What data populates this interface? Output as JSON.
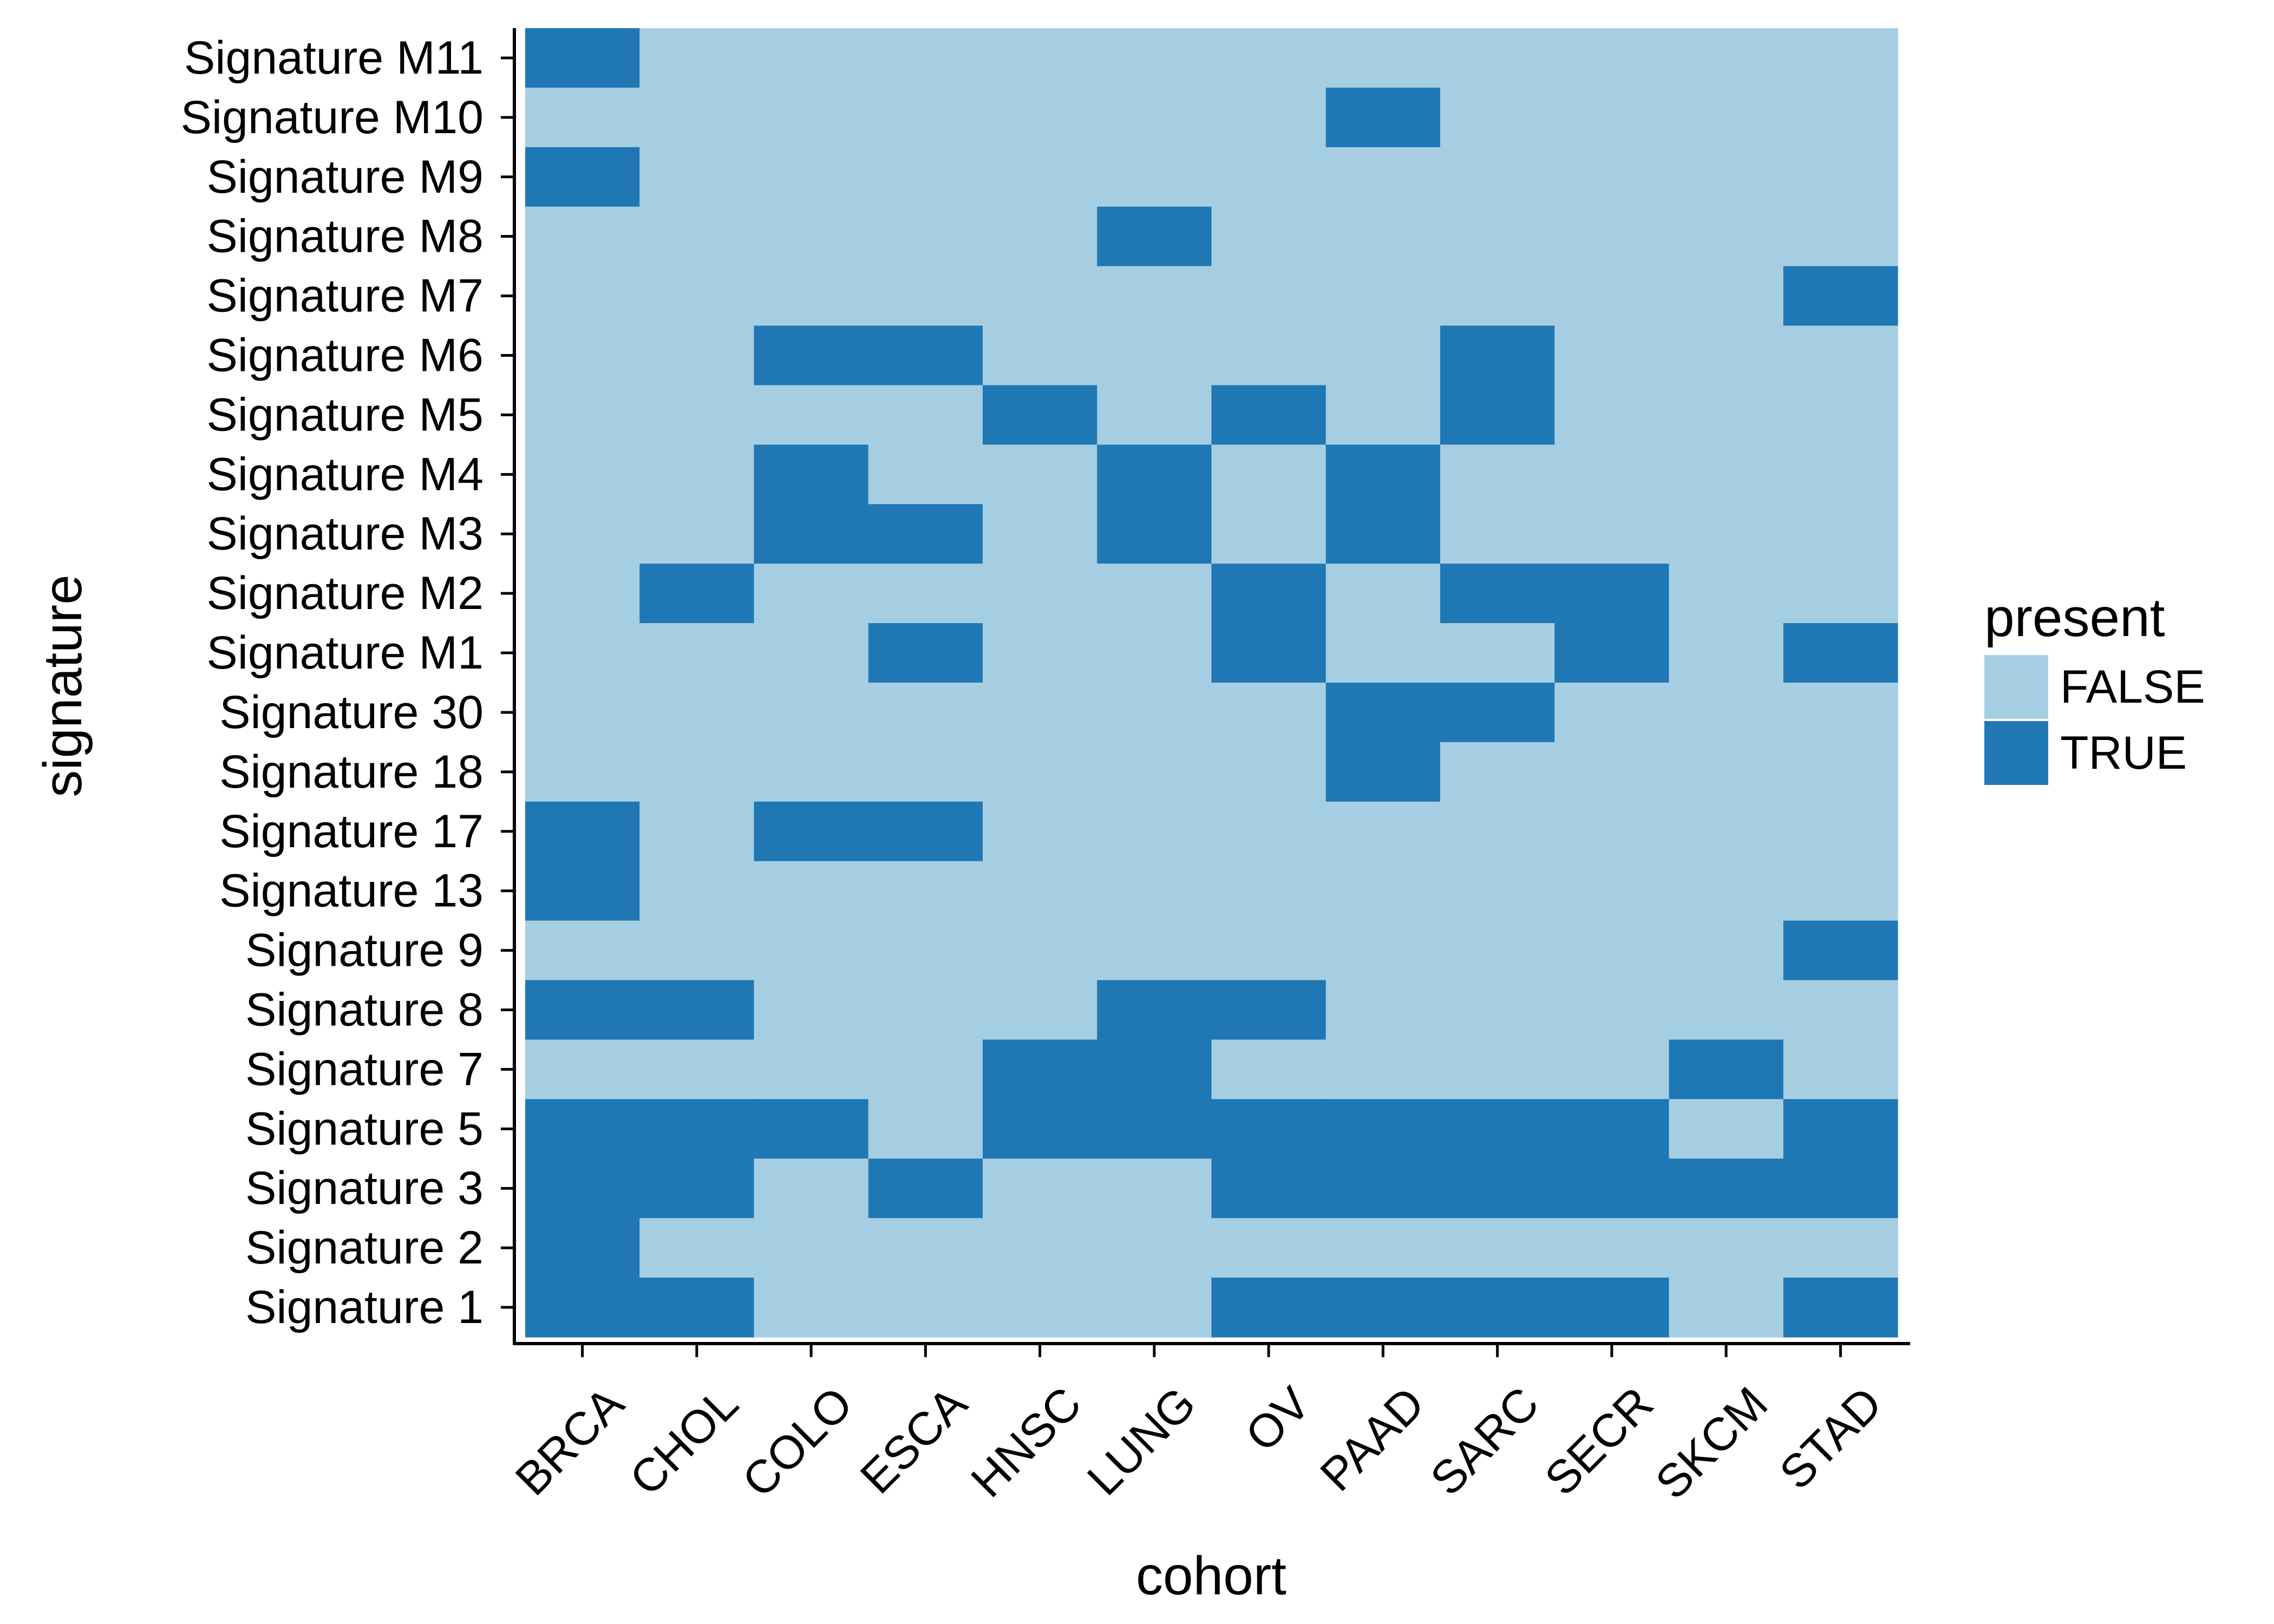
{
  "chart_data": {
    "type": "heatmap",
    "title": "",
    "xlabel": "cohort",
    "ylabel": "signature",
    "x_categories": [
      "BRCA",
      "CHOL",
      "COLO",
      "ESCA",
      "HNSC",
      "LUNG",
      "OV",
      "PAAD",
      "SARC",
      "SECR",
      "SKCM",
      "STAD"
    ],
    "y_categories_top_to_bottom": [
      "Signature M11",
      "Signature M10",
      "Signature M9",
      "Signature M8",
      "Signature M7",
      "Signature M6",
      "Signature M5",
      "Signature M4",
      "Signature M3",
      "Signature M2",
      "Signature M1",
      "Signature 30",
      "Signature 18",
      "Signature 17",
      "Signature 13",
      "Signature 9",
      "Signature 8",
      "Signature 7",
      "Signature 5",
      "Signature 3",
      "Signature 2",
      "Signature 1"
    ],
    "present_matrix": [
      [
        1,
        0,
        0,
        0,
        0,
        0,
        0,
        0,
        0,
        0,
        0,
        0
      ],
      [
        0,
        0,
        0,
        0,
        0,
        0,
        0,
        1,
        0,
        0,
        0,
        0
      ],
      [
        1,
        0,
        0,
        0,
        0,
        0,
        0,
        0,
        0,
        0,
        0,
        0
      ],
      [
        0,
        0,
        0,
        0,
        0,
        1,
        0,
        0,
        0,
        0,
        0,
        0
      ],
      [
        0,
        0,
        0,
        0,
        0,
        0,
        0,
        0,
        0,
        0,
        0,
        1
      ],
      [
        0,
        0,
        1,
        1,
        0,
        0,
        0,
        0,
        1,
        0,
        0,
        0
      ],
      [
        0,
        0,
        0,
        0,
        1,
        0,
        1,
        0,
        1,
        0,
        0,
        0
      ],
      [
        0,
        0,
        1,
        0,
        0,
        1,
        0,
        1,
        0,
        0,
        0,
        0
      ],
      [
        0,
        0,
        1,
        1,
        0,
        1,
        0,
        1,
        0,
        0,
        0,
        0
      ],
      [
        0,
        1,
        0,
        0,
        0,
        0,
        1,
        0,
        1,
        1,
        0,
        0
      ],
      [
        0,
        0,
        0,
        1,
        0,
        0,
        1,
        0,
        0,
        1,
        0,
        1
      ],
      [
        0,
        0,
        0,
        0,
        0,
        0,
        0,
        1,
        1,
        0,
        0,
        0
      ],
      [
        0,
        0,
        0,
        0,
        0,
        0,
        0,
        1,
        0,
        0,
        0,
        0
      ],
      [
        1,
        0,
        1,
        1,
        0,
        0,
        0,
        0,
        0,
        0,
        0,
        0
      ],
      [
        1,
        0,
        0,
        0,
        0,
        0,
        0,
        0,
        0,
        0,
        0,
        0
      ],
      [
        0,
        0,
        0,
        0,
        0,
        0,
        0,
        0,
        0,
        0,
        0,
        1
      ],
      [
        1,
        1,
        0,
        0,
        0,
        1,
        1,
        0,
        0,
        0,
        0,
        0
      ],
      [
        0,
        0,
        0,
        0,
        1,
        1,
        0,
        0,
        0,
        0,
        1,
        0
      ],
      [
        1,
        1,
        1,
        0,
        1,
        1,
        1,
        1,
        1,
        1,
        0,
        1
      ],
      [
        1,
        1,
        0,
        1,
        0,
        0,
        1,
        1,
        1,
        1,
        1,
        1
      ],
      [
        1,
        0,
        0,
        0,
        0,
        0,
        0,
        0,
        0,
        0,
        0,
        0
      ],
      [
        1,
        1,
        0,
        0,
        0,
        0,
        1,
        1,
        1,
        1,
        0,
        1
      ]
    ],
    "legend": {
      "title": "present",
      "position": "right",
      "entries": [
        {
          "label": "FALSE",
          "color": "#a6cee3"
        },
        {
          "label": "TRUE",
          "color": "#1f78b4"
        }
      ]
    },
    "grid": false
  }
}
